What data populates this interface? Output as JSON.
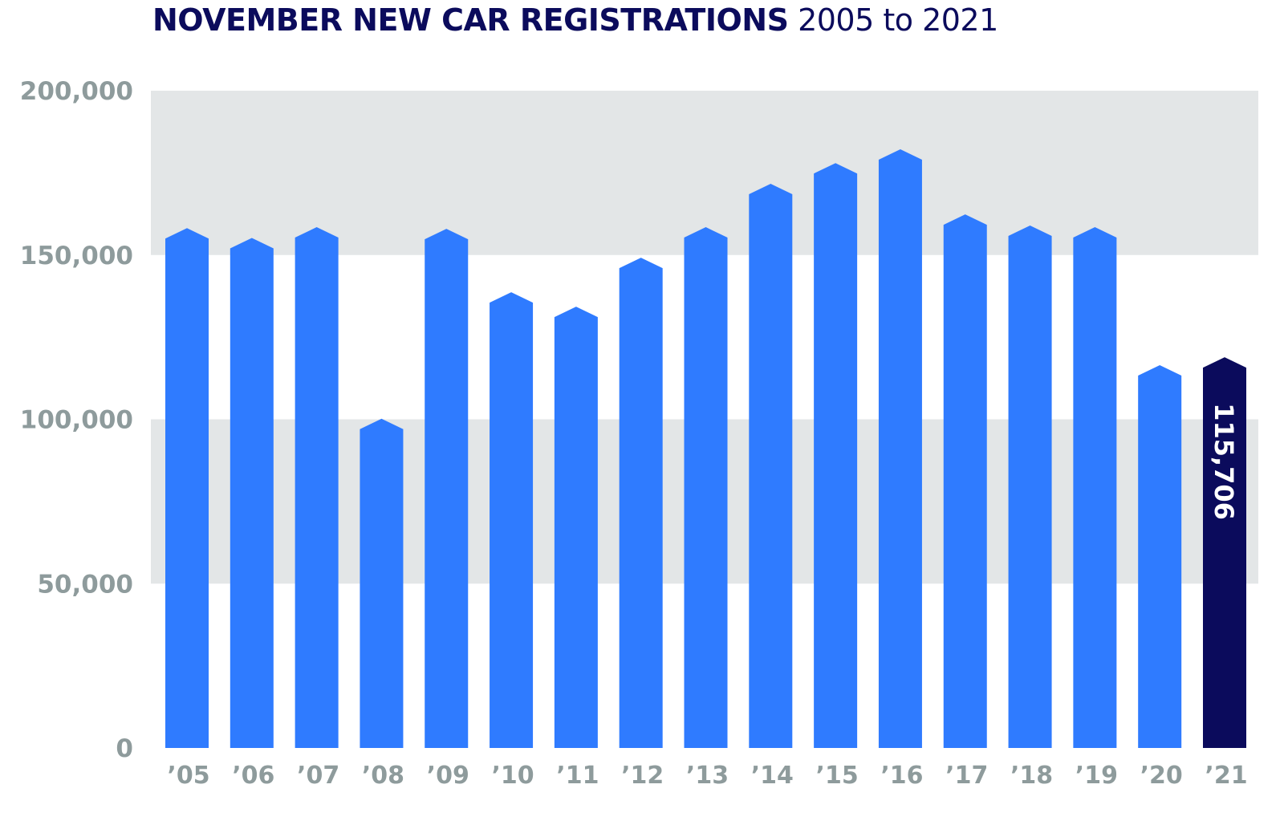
{
  "title": {
    "bold": "NOVEMBER NEW CAR REGISTRATIONS",
    "light": "2005 to 2021"
  },
  "chart_data": {
    "type": "bar",
    "title": "NOVEMBER NEW CAR REGISTRATIONS 2005 to 2021",
    "xlabel": "",
    "ylabel": "",
    "ylim": [
      0,
      200000
    ],
    "yticks": [
      0,
      50000,
      100000,
      150000,
      200000
    ],
    "ytick_labels": [
      "0",
      "50,000",
      "100,000",
      "150,000",
      "200,000"
    ],
    "grid": "alternating horizontal bands",
    "categories": [
      "’05",
      "’06",
      "’07",
      "’08",
      "’09",
      "’10",
      "’11",
      "’12",
      "’13",
      "’14",
      "’15",
      "’16",
      "’17",
      "’18",
      "’19",
      "’20",
      "’21"
    ],
    "values": [
      155000,
      152000,
      155300,
      97000,
      154800,
      135500,
      131100,
      146000,
      155300,
      168500,
      174800,
      179000,
      159200,
      155800,
      155300,
      113300,
      115706
    ],
    "highlight_index": 16,
    "highlight_label": "115,706",
    "colors": {
      "bar": "#2f7bff",
      "highlight": "#0b0b5c",
      "band": "#e3e6e7",
      "tick": "#8e9b9c",
      "title": "#0b0b5c"
    }
  }
}
